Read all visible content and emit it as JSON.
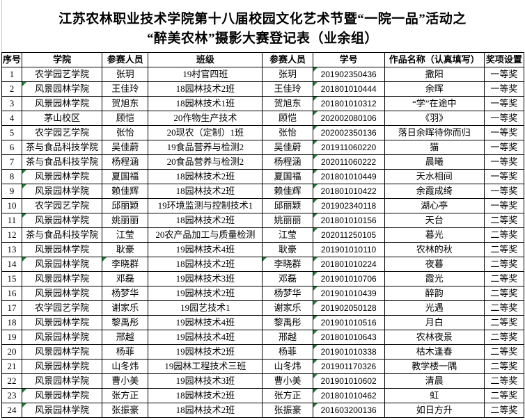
{
  "title": {
    "line1": "江苏农林职业技术学院第十八届校园文化艺术节暨“一院一品”活动之",
    "line2": "“醉美农林”摄影大赛登记表（业余组）"
  },
  "colors": {
    "border": "#000000",
    "error_triangle_green": "#1f7a33",
    "gridline_gray": "#c6c6c6",
    "background": "#ffffff"
  },
  "table": {
    "headers": [
      "序号",
      "学院",
      "参赛人员",
      "班级",
      "参赛人员",
      "学号",
      "作品名称（认真填写）",
      "奖项设置"
    ],
    "columns": [
      {
        "key": "no",
        "name": "cell-no"
      },
      {
        "key": "college",
        "name": "cell-college"
      },
      {
        "key": "participant1",
        "name": "cell-participant1"
      },
      {
        "key": "class",
        "name": "cell-class"
      },
      {
        "key": "participant2",
        "name": "cell-participant2"
      },
      {
        "key": "student_id",
        "name": "cell-student-id"
      },
      {
        "key": "work",
        "name": "cell-work-title"
      },
      {
        "key": "award",
        "name": "cell-award"
      }
    ],
    "error_indicator_note": "green triangle shown at top-left of cells listed in each row's triangles[]",
    "rows": [
      {
        "no": "1",
        "college": "农学园艺学院",
        "participant1": "张玥",
        "class": "19村官四班",
        "participant2": "张玥",
        "student_id": "201902350436",
        "work": "撒阳",
        "award": "一等奖",
        "triangles": [
          "student_id"
        ]
      },
      {
        "no": "2",
        "college": "风景园林学院",
        "participant1": "王佳玲",
        "class": "18园林技术2班",
        "participant2": "王佳玲",
        "student_id": "201801010444",
        "work": "余晖",
        "award": "一等奖",
        "triangles": [
          "college",
          "student_id"
        ]
      },
      {
        "no": "3",
        "college": "风景园林学院",
        "participant1": "贺旭东",
        "class": "18园林技术1班",
        "participant2": "贺旭东",
        "student_id": "201801010312",
        "work": "“学”在途中",
        "award": "一等奖",
        "triangles": [
          "student_id"
        ]
      },
      {
        "no": "4",
        "college": "茅山校区",
        "participant1": "顾恺",
        "class": "20作物生产技术",
        "participant2": "顾恺",
        "student_id": "202002080106",
        "work": "《羽》",
        "award": "一等奖",
        "triangles": [
          "student_id"
        ]
      },
      {
        "no": "5",
        "college": "农学园艺学院",
        "participant1": "张怡",
        "class": "20现农（定制）1班",
        "participant2": "张怡",
        "student_id": "202002350136",
        "work": "落日余晖待你而归",
        "award": "一等奖",
        "triangles": [
          "student_id"
        ]
      },
      {
        "no": "6",
        "college": "茶与食品科技学院",
        "participant1": "吴佳蔚",
        "class": "19食品营养与检测2",
        "participant2": "吴佳蔚",
        "student_id": "201911060220",
        "work": "猫",
        "award": "一等奖",
        "triangles": [
          "student_id"
        ]
      },
      {
        "no": "7",
        "college": "茶与食品科技学院",
        "participant1": "杨程涵",
        "class": "20食品营养与检测2",
        "participant2": "杨程涵",
        "student_id": "202011060222",
        "work": "晨曦",
        "award": "一等奖",
        "triangles": [
          "student_id"
        ]
      },
      {
        "no": "8",
        "college": "风景园林学院",
        "participant1": "夏国福",
        "class": "18园林技术2班",
        "participant2": "夏国福",
        "student_id": "201801010449",
        "work": "天水相间",
        "award": "一等奖",
        "triangles": [
          "college",
          "student_id"
        ]
      },
      {
        "no": "9",
        "college": "风景园林学院",
        "participant1": "赖佳辉",
        "class": "18园林技术2班",
        "participant2": "赖佳辉",
        "student_id": "201801010422",
        "work": "余霞成绮",
        "award": "一等奖",
        "triangles": [
          "college",
          "student_id"
        ]
      },
      {
        "no": "10",
        "college": "农学园艺学院",
        "participant1": "邱丽颖",
        "class": "19环境监测与控制技术1",
        "participant2": "邱丽颖",
        "student_id": "201902340118",
        "work": "湖心亭",
        "award": "一等奖",
        "triangles": [
          "student_id"
        ]
      },
      {
        "no": "11",
        "college": "风景园林学院",
        "participant1": "姚丽丽",
        "class": "18园林技术2班",
        "participant2": "姚丽丽",
        "student_id": "201801010156",
        "work": "天台",
        "award": "二等奖",
        "triangles": [
          "college",
          "student_id"
        ]
      },
      {
        "no": "12",
        "college": "茶与食品科技学院",
        "participant1": "江莹",
        "class": "20农产品加工与质量检测",
        "participant2": "江莹",
        "student_id": "202011250105",
        "work": "暮光",
        "award": "二等奖",
        "triangles": [
          "student_id"
        ]
      },
      {
        "no": "13",
        "college": "风景园林学院",
        "participant1": "耿豪",
        "class": "19园林技术4班",
        "participant2": "耿豪",
        "student_id": "201901010110",
        "work": "农林的秋",
        "award": "二等奖",
        "triangles": []
      },
      {
        "no": "14",
        "college": "风景园林学院",
        "participant1": "李晓群",
        "class": "18园林技术2班",
        "participant2": "李晓群",
        "student_id": "201801010224",
        "work": "夜暮",
        "award": "二等奖",
        "triangles": [
          "college",
          "participant1",
          "participant2",
          "student_id"
        ]
      },
      {
        "no": "15",
        "college": "风景园林学院",
        "participant1": "邓磊",
        "class": "19园林技术3班",
        "participant2": "邓磊",
        "student_id": "201901010706",
        "work": "霞光",
        "award": "二等奖",
        "triangles": [
          "student_id"
        ]
      },
      {
        "no": "16",
        "college": "风景园林学院",
        "participant1": "杨梦华",
        "class": "19园林技术2班",
        "participant2": "杨梦华",
        "student_id": "201901010439",
        "work": "醉韵",
        "award": "二等奖",
        "triangles": [
          "student_id"
        ]
      },
      {
        "no": "17",
        "college": "农学园艺学院",
        "participant1": "谢家乐",
        "class": "19园艺技术1",
        "participant2": "谢家乐",
        "student_id": "201902050128",
        "work": "光遇",
        "award": "二等奖",
        "triangles": [
          "student_id"
        ]
      },
      {
        "no": "18",
        "college": "风景园林学院",
        "participant1": "黎禹彤",
        "class": "19园林技术4班",
        "participant2": "黎禹彤",
        "student_id": "201901010516",
        "work": "月白",
        "award": "二等奖",
        "triangles": [
          "student_id"
        ]
      },
      {
        "no": "19",
        "college": "风景园林学院",
        "participant1": "邢越",
        "class": "19园林技术4班",
        "participant2": "邢越",
        "student_id": "201801010643",
        "work": "农林夜景",
        "award": "二等奖",
        "triangles": [
          "student_id"
        ]
      },
      {
        "no": "20",
        "college": "风景园林学院",
        "participant1": "杨菲",
        "class": "19园林技术2班",
        "participant2": "杨菲",
        "student_id": "201901010338",
        "work": "枯木逢春",
        "award": "二等奖",
        "triangles": [
          "student_id"
        ]
      },
      {
        "no": "21",
        "college": "风景园林学院",
        "participant1": "山冬炜",
        "class": "19园林工程技术三班",
        "participant2": "山冬炜",
        "student_id": "201901170326",
        "work": "教学楼一隅",
        "award": "二等奖",
        "triangles": [
          "student_id"
        ]
      },
      {
        "no": "22",
        "college": "风景园林学院",
        "participant1": "曹小美",
        "class": "19园林技术3班",
        "participant2": "曹小美",
        "student_id": "201901010602",
        "work": "清晨",
        "award": "二等奖",
        "triangles": [
          "student_id"
        ]
      },
      {
        "no": "23",
        "college": "风景园林学院",
        "participant1": "张方正",
        "class": "18园林技术2班",
        "participant2": "张方正",
        "student_id": "201801010462",
        "work": "虹",
        "award": "二等奖",
        "triangles": [
          "college",
          "student_id"
        ]
      },
      {
        "no": "24",
        "college": "风景园林学院",
        "participant1": "张振豪",
        "class": "18园林技术2班",
        "participant2": "张振豪",
        "student_id": "201603200136",
        "work": "如日方升",
        "award": "二等奖",
        "triangles": [
          "college",
          "student_id"
        ]
      }
    ]
  }
}
